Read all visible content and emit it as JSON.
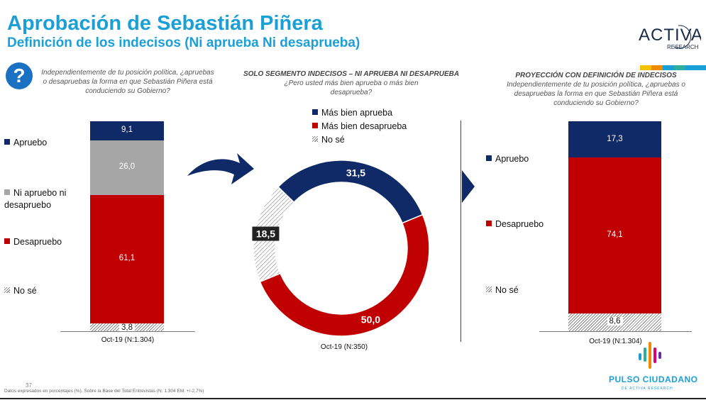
{
  "title": "Aprobación de Sebastián Piñera",
  "subtitle": "Definición de los indecisos (Ni aprueba Ni desaprueba)",
  "question_icon": "question-icon",
  "left_question": "Independientemente de tu posición política, ¿apruebas o desapruebas la forma en que Sebastián Piñera está conduciendo su Gobierno?",
  "middle_header": "SOLO SEGMENTO INDECISOS – NI APRUEBA NI DESAPRUEBA",
  "middle_question": "¿Pero usted más bien aprueba o más bien desaprueba?",
  "right_header": "PROYECCIÓN CON  DEFINICIÓN DE INDECISOS",
  "right_question": "Independientemente de tu posición política, ¿apruebas o desapruebas la forma en que Sebastián Piñera está conduciendo su Gobierno?",
  "colors": {
    "title": "#1a9fd6",
    "navy": "#0f2a66",
    "red": "#c00000",
    "gray": "#a6a6a6",
    "arrow": "#0f2a66"
  },
  "footer": "Datos expresados en porcentajes (%). Sobre la Base del Total Entrevistas (N: 1.304 EM: +/-2,7%)",
  "page_number": "37",
  "brand": {
    "logo_text": "ACTIVA",
    "logo_sub": "RESEARCH",
    "name": "PULSO CIUDADANO",
    "sub": "DE ACTIVA RESEARCH"
  },
  "chart_data": [
    {
      "type": "bar",
      "stacked": true,
      "categories": [
        "Oct-19 (N:1.304)"
      ],
      "series": [
        {
          "name": "No sé",
          "values": [
            3.8
          ],
          "labels": [
            "3,8"
          ],
          "pattern": "hatch"
        },
        {
          "name": "Desapruebo",
          "values": [
            61.1
          ],
          "labels": [
            "61,1"
          ],
          "color": "#c00000"
        },
        {
          "name": "Ni apruebo ni desapruebo",
          "values": [
            26.0
          ],
          "labels": [
            "26,0"
          ],
          "color": "#a6a6a6"
        },
        {
          "name": "Apruebo",
          "values": [
            9.1
          ],
          "labels": [
            "9,1"
          ],
          "color": "#0f2a66"
        }
      ],
      "legend": [
        "Apruebo",
        "Ni apruebo ni desapruebo",
        "Desapruebo",
        "No sé"
      ],
      "legend_placement": "left"
    },
    {
      "type": "pie",
      "donut": true,
      "category": "Oct-19 (N:350)",
      "slices": [
        {
          "name": "Más bien aprueba",
          "value": 31.5,
          "label": "31,5",
          "color": "#0f2a66"
        },
        {
          "name": "Más bien desaprueba",
          "value": 50.0,
          "label": "50,0",
          "color": "#c00000"
        },
        {
          "name": "No sé",
          "value": 18.5,
          "label": "18,5",
          "pattern": "hatch"
        }
      ],
      "legend_placement": "top"
    },
    {
      "type": "bar",
      "stacked": true,
      "categories": [
        "Oct-19 (N:1.304)"
      ],
      "series": [
        {
          "name": "No sé",
          "values": [
            8.6
          ],
          "labels": [
            "8,6"
          ],
          "pattern": "hatch"
        },
        {
          "name": "Desapruebo",
          "values": [
            74.1
          ],
          "labels": [
            "74,1"
          ],
          "color": "#c00000"
        },
        {
          "name": "Apruebo",
          "values": [
            17.3
          ],
          "labels": [
            "17,3"
          ],
          "color": "#0f2a66"
        }
      ],
      "legend": [
        "Apruebo",
        "Desapruebo",
        "No sé"
      ],
      "legend_placement": "left"
    }
  ]
}
